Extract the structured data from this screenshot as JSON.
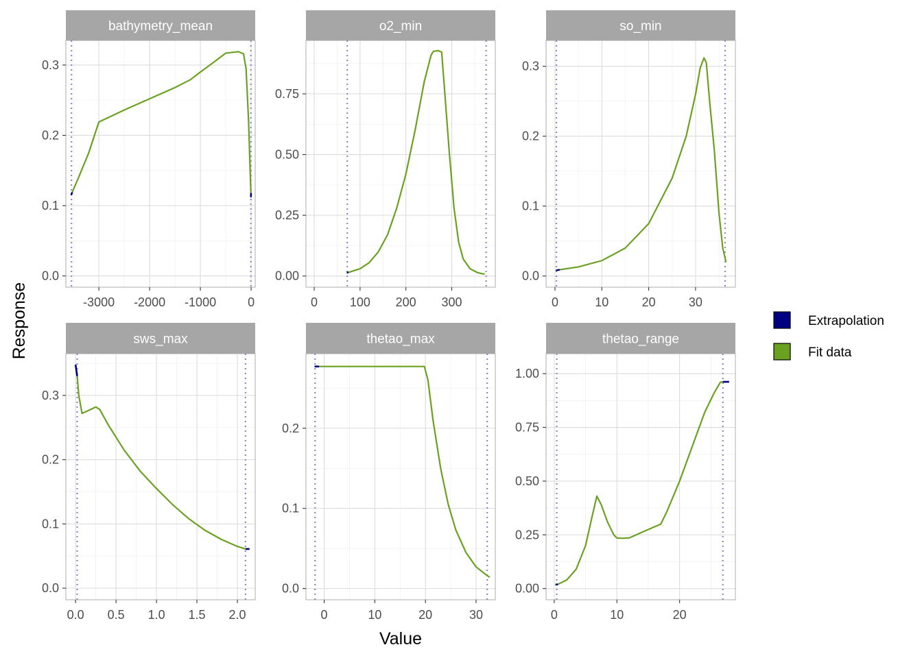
{
  "figure": {
    "xlabel": "Value",
    "ylabel": "Response"
  },
  "legend": {
    "placement": "right",
    "items": [
      {
        "label": "Extrapolation",
        "color": "#000080"
      },
      {
        "label": "Fit data",
        "color": "#6aa121"
      }
    ]
  },
  "colors": {
    "strip": "#a6a6a6",
    "grid_major": "#dcdcdc",
    "grid_minor": "#efefef",
    "panel_border": "#b3b3b3",
    "limit_line": "#8b86d0",
    "fit": "#6aa121",
    "extrapolation": "#000080"
  },
  "chart_data": [
    {
      "type": "line",
      "title": "bathymetry_mean",
      "xlim": [
        -3650,
        80
      ],
      "ylim": [
        -0.016,
        0.335
      ],
      "xticks": [
        -3000,
        -2000,
        -1000,
        0
      ],
      "xticklabels": [
        "-3000",
        "-2000",
        "-1000",
        "0"
      ],
      "yticks": [
        0.0,
        0.1,
        0.2,
        0.3
      ],
      "yticklabels": [
        "0.0",
        "0.1",
        "0.2",
        "0.3"
      ],
      "xminor": [
        -3500,
        -2500,
        -1500,
        -500
      ],
      "yminor": [
        0.05,
        0.15,
        0.25
      ],
      "limits": [
        -3540,
        -5
      ],
      "extrapolation": [
        [
          [
            -3545,
            0.115
          ],
          [
            -3525,
            0.119
          ]
        ],
        [
          [
            -5,
            0.112
          ],
          [
            -2,
            0.118
          ]
        ]
      ],
      "series": [
        {
          "name": "Fit data",
          "points": [
            [
              -3525,
              0.119
            ],
            [
              -3400,
              0.14
            ],
            [
              -3200,
              0.175
            ],
            [
              -3000,
              0.219
            ],
            [
              -2500,
              0.236
            ],
            [
              -2000,
              0.252
            ],
            [
              -1500,
              0.268
            ],
            [
              -1200,
              0.279
            ],
            [
              -1000,
              0.29
            ],
            [
              -700,
              0.306
            ],
            [
              -500,
              0.317
            ],
            [
              -250,
              0.319
            ],
            [
              -150,
              0.316
            ],
            [
              -100,
              0.295
            ],
            [
              -50,
              0.22
            ],
            [
              -20,
              0.15
            ],
            [
              -5,
              0.118
            ]
          ]
        }
      ]
    },
    {
      "type": "line",
      "title": "o2_min",
      "xlim": [
        -18,
        395
      ],
      "ylim": [
        -0.046,
        0.97
      ],
      "xticks": [
        0,
        100,
        200,
        300
      ],
      "xticklabels": [
        "0",
        "100",
        "200",
        "300"
      ],
      "yticks": [
        0.0,
        0.25,
        0.5,
        0.75
      ],
      "yticklabels": [
        "0.00",
        "0.25",
        "0.50",
        "0.75"
      ],
      "xminor": [
        50,
        150,
        250,
        350
      ],
      "yminor": [
        0.125,
        0.375,
        0.625,
        0.875
      ],
      "limits": [
        72,
        375
      ],
      "extrapolation": [
        [
          [
            71,
            0.014
          ],
          [
            75,
            0.015
          ]
        ]
      ],
      "series": [
        {
          "name": "Fit data",
          "points": [
            [
              75,
              0.015
            ],
            [
              100,
              0.03
            ],
            [
              120,
              0.055
            ],
            [
              140,
              0.1
            ],
            [
              160,
              0.17
            ],
            [
              180,
              0.28
            ],
            [
              200,
              0.42
            ],
            [
              220,
              0.6
            ],
            [
              240,
              0.8
            ],
            [
              255,
              0.91
            ],
            [
              260,
              0.925
            ],
            [
              270,
              0.928
            ],
            [
              278,
              0.922
            ],
            [
              285,
              0.75
            ],
            [
              295,
              0.5
            ],
            [
              305,
              0.28
            ],
            [
              315,
              0.14
            ],
            [
              325,
              0.07
            ],
            [
              340,
              0.03
            ],
            [
              355,
              0.015
            ],
            [
              365,
              0.01
            ],
            [
              372,
              0.008
            ]
          ]
        }
      ]
    },
    {
      "type": "line",
      "title": "so_min",
      "xlim": [
        -1.9,
        38.5
      ],
      "ylim": [
        -0.016,
        0.337
      ],
      "xticks": [
        0,
        10,
        20,
        30
      ],
      "xticklabels": [
        "0",
        "10",
        "20",
        "30"
      ],
      "yticks": [
        0.0,
        0.1,
        0.2,
        0.3
      ],
      "yticklabels": [
        "0.0",
        "0.1",
        "0.2",
        "0.3"
      ],
      "xminor": [
        5,
        15,
        25,
        35
      ],
      "yminor": [
        0.05,
        0.15,
        0.25
      ],
      "limits": [
        0.3,
        36.3
      ],
      "extrapolation": [
        [
          [
            0.2,
            0.008
          ],
          [
            1,
            0.009
          ]
        ]
      ],
      "series": [
        {
          "name": "Fit data",
          "points": [
            [
              1,
              0.009
            ],
            [
              5,
              0.013
            ],
            [
              10,
              0.022
            ],
            [
              15,
              0.04
            ],
            [
              20,
              0.075
            ],
            [
              25,
              0.14
            ],
            [
              28,
              0.2
            ],
            [
              30,
              0.26
            ],
            [
              31,
              0.298
            ],
            [
              31.8,
              0.312
            ],
            [
              32.3,
              0.305
            ],
            [
              33,
              0.25
            ],
            [
              34,
              0.18
            ],
            [
              35,
              0.09
            ],
            [
              35.8,
              0.04
            ],
            [
              36.5,
              0.02
            ]
          ]
        }
      ]
    },
    {
      "type": "line",
      "title": "sws_max",
      "xlim": [
        -0.12,
        2.22
      ],
      "ylim": [
        -0.018,
        0.365
      ],
      "xticks": [
        0.0,
        0.5,
        1.0,
        1.5,
        2.0
      ],
      "xticklabels": [
        "0.0",
        "0.5",
        "1.0",
        "1.5",
        "2.0"
      ],
      "xminor": [
        0.25,
        0.75,
        1.25,
        1.75
      ],
      "yminor": [
        0.05,
        0.15,
        0.25,
        0.35
      ],
      "yticks": [
        0.0,
        0.1,
        0.2,
        0.3
      ],
      "yticklabels": [
        "0.0",
        "0.1",
        "0.2",
        "0.3"
      ],
      "limits": [
        0.02,
        2.1
      ],
      "extrapolation": [
        [
          [
            0.0,
            0.348
          ],
          [
            0.02,
            0.33
          ]
        ],
        [
          [
            2.1,
            0.061
          ],
          [
            2.15,
            0.061
          ]
        ]
      ],
      "series": [
        {
          "name": "Fit data",
          "points": [
            [
              0.02,
              0.33
            ],
            [
              0.04,
              0.3
            ],
            [
              0.08,
              0.272
            ],
            [
              0.15,
              0.276
            ],
            [
              0.25,
              0.282
            ],
            [
              0.3,
              0.278
            ],
            [
              0.4,
              0.255
            ],
            [
              0.6,
              0.215
            ],
            [
              0.8,
              0.182
            ],
            [
              1.0,
              0.155
            ],
            [
              1.2,
              0.13
            ],
            [
              1.4,
              0.108
            ],
            [
              1.6,
              0.09
            ],
            [
              1.8,
              0.076
            ],
            [
              2.0,
              0.065
            ],
            [
              2.1,
              0.061
            ]
          ]
        }
      ]
    },
    {
      "type": "line",
      "title": "thetao_max",
      "xlim": [
        -3.6,
        33.8
      ],
      "ylim": [
        -0.014,
        0.293
      ],
      "xticks": [
        0,
        10,
        20,
        30
      ],
      "xticklabels": [
        "0",
        "10",
        "20",
        "30"
      ],
      "yticks": [
        0.0,
        0.1,
        0.2
      ],
      "yticklabels": [
        "0.0",
        "0.1",
        "0.2"
      ],
      "xminor": [
        -5,
        5,
        15,
        25
      ],
      "yminor": [
        0.05,
        0.15,
        0.25
      ],
      "limits": [
        -1.8,
        32.2
      ],
      "extrapolation": [
        [
          [
            -1.9,
            0.277
          ],
          [
            -1.0,
            0.277
          ]
        ]
      ],
      "series": [
        {
          "name": "Fit data",
          "points": [
            [
              -1.0,
              0.277
            ],
            [
              5,
              0.277
            ],
            [
              10,
              0.277
            ],
            [
              15,
              0.277
            ],
            [
              19.8,
              0.277
            ],
            [
              20.5,
              0.26
            ],
            [
              21.5,
              0.21
            ],
            [
              23,
              0.15
            ],
            [
              24.5,
              0.105
            ],
            [
              26,
              0.073
            ],
            [
              28,
              0.045
            ],
            [
              30,
              0.027
            ],
            [
              32,
              0.017
            ],
            [
              32.7,
              0.014
            ]
          ]
        }
      ]
    },
    {
      "type": "line",
      "title": "thetao_range",
      "xlim": [
        -1.3,
        28.9
      ],
      "ylim": [
        -0.052,
        1.093
      ],
      "xticks": [
        0,
        10,
        20
      ],
      "xticklabels": [
        "0",
        "10",
        "20"
      ],
      "yticks": [
        0.0,
        0.25,
        0.5,
        0.75,
        1.0
      ],
      "yticklabels": [
        "0.00",
        "0.25",
        "0.50",
        "0.75",
        "1.00"
      ],
      "xminor": [
        5,
        15,
        25
      ],
      "yminor": [
        0.125,
        0.375,
        0.625,
        0.875
      ],
      "limits": [
        0.4,
        26.9
      ],
      "extrapolation": [
        [
          [
            0.2,
            0.018
          ],
          [
            0.6,
            0.02
          ]
        ],
        [
          [
            26.9,
            0.962
          ],
          [
            27.9,
            0.962
          ]
        ]
      ],
      "series": [
        {
          "name": "Fit data",
          "points": [
            [
              0.6,
              0.02
            ],
            [
              2,
              0.04
            ],
            [
              3.5,
              0.09
            ],
            [
              5,
              0.2
            ],
            [
              6,
              0.33
            ],
            [
              6.8,
              0.43
            ],
            [
              7.5,
              0.39
            ],
            [
              8.5,
              0.31
            ],
            [
              9.5,
              0.25
            ],
            [
              10,
              0.235
            ],
            [
              11,
              0.234
            ],
            [
              12,
              0.236
            ],
            [
              14,
              0.262
            ],
            [
              17,
              0.3
            ],
            [
              18,
              0.36
            ],
            [
              20,
              0.5
            ],
            [
              22,
              0.66
            ],
            [
              24,
              0.82
            ],
            [
              25.5,
              0.91
            ],
            [
              26.5,
              0.96
            ],
            [
              26.9,
              0.962
            ]
          ]
        }
      ]
    }
  ]
}
